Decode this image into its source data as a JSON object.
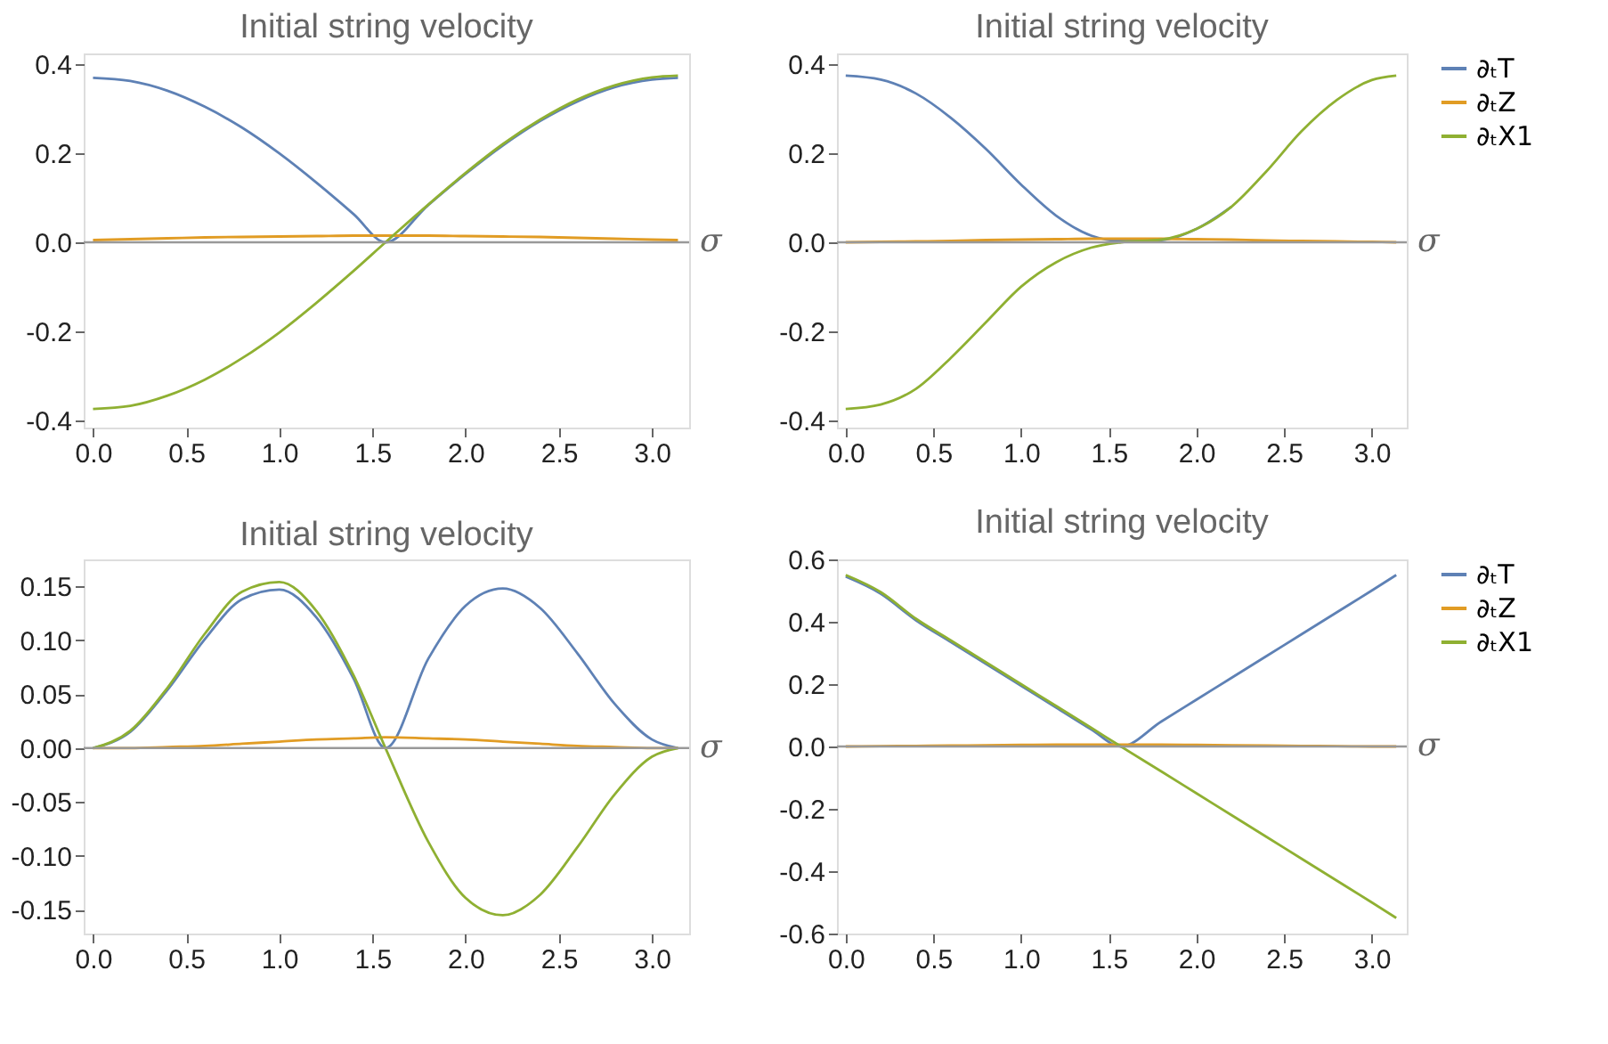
{
  "chart_data": [
    {
      "type": "line",
      "title": "Initial string velocity",
      "xlabel": "σ",
      "legend": false,
      "grid": false,
      "ref_lines": [
        {
          "axis": "y",
          "value": 0,
          "color": "#999999"
        }
      ],
      "x": [
        0,
        0.2,
        0.4,
        0.6,
        0.8,
        1.0,
        1.2,
        1.4,
        1.57,
        1.8,
        2.0,
        2.2,
        2.4,
        2.6,
        2.8,
        3.0,
        3.14
      ],
      "xlim": [
        -0.05,
        3.2
      ],
      "ylim": [
        -0.417,
        0.425
      ],
      "xticks": [
        {
          "value": 0,
          "label": "0.0"
        },
        {
          "value": 0.5,
          "label": "0.5"
        },
        {
          "value": 1,
          "label": "1.0"
        },
        {
          "value": 1.5,
          "label": "1.5"
        },
        {
          "value": 2,
          "label": "2.0"
        },
        {
          "value": 2.5,
          "label": "2.5"
        },
        {
          "value": 3,
          "label": "3.0"
        }
      ],
      "yticks": [
        {
          "value": -0.4,
          "label": "-0.4"
        },
        {
          "value": -0.2,
          "label": "-0.2"
        },
        {
          "value": 0,
          "label": "0.0"
        },
        {
          "value": 0.2,
          "label": "0.2"
        },
        {
          "value": 0.4,
          "label": "0.4"
        }
      ],
      "series": [
        {
          "color": "#5e81b5",
          "values": [
            0.37,
            0.363,
            0.341,
            0.305,
            0.258,
            0.2,
            0.134,
            0.063,
            0,
            0.084,
            0.154,
            0.218,
            0.273,
            0.317,
            0.349,
            0.366,
            0.37
          ]
        },
        {
          "color": "#e19c24",
          "values": [
            0.005,
            0.007,
            0.009,
            0.011,
            0.012,
            0.013,
            0.014,
            0.015,
            0.015,
            0.015,
            0.014,
            0.013,
            0.012,
            0.01,
            0.008,
            0.006,
            0.005
          ]
        },
        {
          "color": "#8fb032",
          "values": [
            -0.375,
            -0.368,
            -0.345,
            -0.309,
            -0.261,
            -0.203,
            -0.136,
            -0.064,
            0,
            0.085,
            0.156,
            0.221,
            0.276,
            0.321,
            0.353,
            0.371,
            0.375
          ]
        }
      ]
    },
    {
      "type": "line",
      "title": "Initial string velocity",
      "xlabel": "σ",
      "legend": "right",
      "grid": false,
      "ref_lines": [
        {
          "axis": "y",
          "value": 0,
          "color": "#999999"
        }
      ],
      "x": [
        0,
        0.2,
        0.4,
        0.6,
        0.8,
        1.0,
        1.2,
        1.4,
        1.57,
        1.8,
        2.0,
        2.2,
        2.4,
        2.6,
        2.8,
        3.0,
        3.14
      ],
      "xlim": [
        -0.05,
        3.2
      ],
      "ylim": [
        -0.417,
        0.425
      ],
      "xticks": [
        {
          "value": 0,
          "label": "0.0"
        },
        {
          "value": 0.5,
          "label": "0.5"
        },
        {
          "value": 1,
          "label": "1.0"
        },
        {
          "value": 1.5,
          "label": "1.5"
        },
        {
          "value": 2,
          "label": "2.0"
        },
        {
          "value": 2.5,
          "label": "2.5"
        },
        {
          "value": 3,
          "label": "3.0"
        }
      ],
      "yticks": [
        {
          "value": -0.4,
          "label": "-0.4"
        },
        {
          "value": -0.2,
          "label": "-0.2"
        },
        {
          "value": 0,
          "label": "0.0"
        },
        {
          "value": 0.2,
          "label": "0.2"
        },
        {
          "value": 0.4,
          "label": "0.4"
        }
      ],
      "series": [
        {
          "name": "∂ₜT",
          "color": "#5e81b5",
          "values": [
            0.375,
            0.366,
            0.335,
            0.28,
            0.21,
            0.13,
            0.06,
            0.015,
            0.003,
            0.005,
            0.03,
            0.08,
            null,
            null,
            null,
            null,
            null
          ]
        },
        {
          "name": "∂ₜZ",
          "color": "#e19c24",
          "values": [
            0,
            0.001,
            0.002,
            0.003,
            0.005,
            0.006,
            0.007,
            0.008,
            0.008,
            0.008,
            0.007,
            0.006,
            0.004,
            0.003,
            0.002,
            0.001,
            0
          ]
        },
        {
          "name": "∂ₜX1",
          "color": "#8fb032",
          "values": [
            -0.375,
            -0.365,
            -0.33,
            -0.26,
            -0.18,
            -0.1,
            -0.045,
            -0.012,
            0,
            0.006,
            0.03,
            0.08,
            0.16,
            0.25,
            0.32,
            0.365,
            0.375
          ]
        }
      ]
    },
    {
      "type": "line",
      "title": "Initial string velocity",
      "xlabel": "σ",
      "legend": false,
      "grid": false,
      "ref_lines": [
        {
          "axis": "y",
          "value": 0,
          "color": "#999999"
        }
      ],
      "x": [
        0,
        0.2,
        0.4,
        0.6,
        0.8,
        1.0,
        1.2,
        1.4,
        1.57,
        1.8,
        2.0,
        2.2,
        2.4,
        2.6,
        2.8,
        3.0,
        3.14
      ],
      "xlim": [
        -0.05,
        3.2
      ],
      "ylim": [
        -0.172,
        0.175
      ],
      "xticks": [
        {
          "value": 0,
          "label": "0.0"
        },
        {
          "value": 0.5,
          "label": "0.5"
        },
        {
          "value": 1,
          "label": "1.0"
        },
        {
          "value": 1.5,
          "label": "1.5"
        },
        {
          "value": 2,
          "label": "2.0"
        },
        {
          "value": 2.5,
          "label": "2.5"
        },
        {
          "value": 3,
          "label": "3.0"
        }
      ],
      "yticks": [
        {
          "value": -0.15,
          "label": "-0.15"
        },
        {
          "value": -0.1,
          "label": "-0.10"
        },
        {
          "value": -0.05,
          "label": "-0.05"
        },
        {
          "value": 0,
          "label": "0.00"
        },
        {
          "value": 0.05,
          "label": "0.05"
        },
        {
          "value": 0.1,
          "label": "0.10"
        },
        {
          "value": 0.15,
          "label": "0.15"
        }
      ],
      "series": [
        {
          "color": "#5e81b5",
          "values": [
            0,
            0.015,
            0.054,
            0.101,
            0.138,
            0.147,
            0.121,
            0.064,
            0,
            0.083,
            0.132,
            0.148,
            0.13,
            0.088,
            0.041,
            0.008,
            0
          ]
        },
        {
          "color": "#e19c24",
          "values": [
            0,
            0,
            0.001,
            0.002,
            0.004,
            0.006,
            0.008,
            0.009,
            0.01,
            0.009,
            0.008,
            0.006,
            0.004,
            0.002,
            0.001,
            0,
            0
          ]
        },
        {
          "color": "#8fb032",
          "values": [
            0,
            0.016,
            0.056,
            0.106,
            0.145,
            0.154,
            0.127,
            0.067,
            0,
            -0.087,
            -0.139,
            -0.155,
            -0.136,
            -0.092,
            -0.043,
            -0.008,
            0
          ]
        }
      ]
    },
    {
      "type": "line",
      "title": "Initial string velocity",
      "xlabel": "σ",
      "legend": "right",
      "grid": false,
      "x": [
        0,
        0.2,
        0.4,
        0.6,
        0.8,
        1.0,
        1.2,
        1.4,
        1.57,
        1.8,
        2.0,
        2.2,
        2.4,
        2.6,
        2.8,
        3.0,
        3.14
      ],
      "ref_lines": [
        {
          "axis": "y",
          "value": 0,
          "color": "#999999"
        }
      ],
      "xlim": [
        -0.05,
        3.2
      ],
      "ylim": [
        -0.6,
        0.6
      ],
      "xticks": [
        {
          "value": 0,
          "label": "0.0"
        },
        {
          "value": 0.5,
          "label": "0.5"
        },
        {
          "value": 1,
          "label": "1.0"
        },
        {
          "value": 1.5,
          "label": "1.5"
        },
        {
          "value": 2,
          "label": "2.0"
        },
        {
          "value": 2.5,
          "label": "2.5"
        },
        {
          "value": 3,
          "label": "3.0"
        }
      ],
      "yticks": [
        {
          "value": -0.6,
          "label": "-0.6"
        },
        {
          "value": -0.4,
          "label": "-0.4"
        },
        {
          "value": -0.2,
          "label": "-0.2"
        },
        {
          "value": 0,
          "label": "0.0"
        },
        {
          "value": 0.2,
          "label": "0.2"
        },
        {
          "value": 0.4,
          "label": "0.4"
        },
        {
          "value": 0.6,
          "label": "0.6"
        }
      ],
      "series": [
        {
          "name": "∂ₜT",
          "color": "#5e81b5",
          "values": [
            0.545,
            0.49,
            0.405,
            0.335,
            0.265,
            0.195,
            0.125,
            0.055,
            0,
            0.08,
            0.15,
            0.22,
            0.29,
            0.36,
            0.43,
            0.5,
            0.55
          ]
        },
        {
          "name": "∂ₜZ",
          "color": "#e19c24",
          "values": [
            0,
            0.001,
            0.002,
            0.003,
            0.004,
            0.005,
            0.006,
            0.006,
            0.006,
            0.006,
            0.005,
            0.004,
            0.003,
            0.002,
            0.001,
            0,
            0
          ]
        },
        {
          "name": "∂ₜX1",
          "color": "#8fb032",
          "values": [
            0.55,
            0.495,
            0.41,
            0.34,
            0.27,
            0.2,
            0.13,
            0.06,
            0,
            -0.08,
            -0.15,
            -0.22,
            -0.29,
            -0.36,
            -0.43,
            -0.5,
            -0.55
          ]
        }
      ]
    }
  ]
}
